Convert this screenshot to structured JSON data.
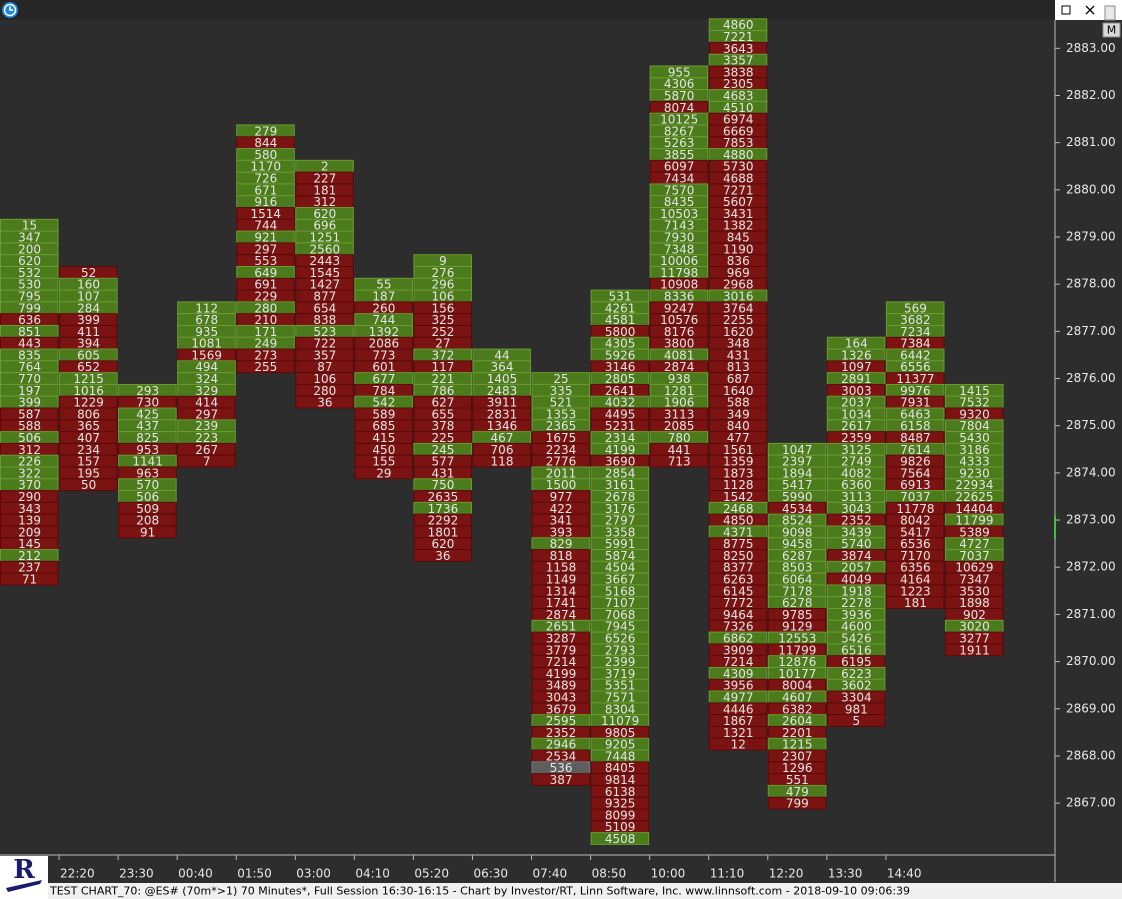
{
  "chart_data": {
    "type": "footprint",
    "title": "TEST CHART_70: @ES# (70m*>1) 70 Minutes*, Full Session 16:30-16:15 - Chart by Investor/RT, Linn Software, Inc. www.linnsoft.com - 2018-09-10 09:06:39",
    "logo": "R",
    "button": "M",
    "palette": {
      "g": "#4c7b1c",
      "r": "#7b1313",
      "n": "#5e5e5e"
    },
    "categories": [
      null,
      "22:20",
      "23:30",
      "00:40",
      "01:50",
      "03:00",
      "04:10",
      "05:20",
      "06:30",
      "07:40",
      "08:50",
      "10:00",
      "11:10",
      "12:20",
      "13:30",
      "14:40",
      null
    ],
    "columns": [
      {
        "top": 2879.25,
        "values": [
          15,
          347,
          200,
          620,
          532,
          530,
          795,
          799,
          636,
          851,
          443,
          835,
          764,
          770,
          197,
          399,
          587,
          588,
          506,
          312,
          226,
          322,
          370,
          290,
          343,
          139,
          209,
          145,
          212,
          237,
          71
        ],
        "colors": "ggggggggrgrgggggrrgrgggrrrrrgrr"
      },
      {
        "top": 2878.25,
        "values": [
          52,
          160,
          107,
          284,
          399,
          411,
          394,
          605,
          652,
          1215,
          1016,
          1229,
          806,
          365,
          407,
          234,
          157,
          195,
          50
        ],
        "colors": "rgggrrrgrggrrrrrrrr"
      },
      {
        "top": 2875.75,
        "values": [
          293,
          730,
          425,
          437,
          825,
          953,
          1141,
          963,
          570,
          506,
          509,
          208,
          91
        ],
        "colors": "grgggrgrggrrr"
      },
      {
        "top": 2877.5,
        "values": [
          112,
          678,
          935,
          1081,
          1569,
          494,
          324,
          329,
          414,
          297,
          239,
          223,
          267,
          7
        ],
        "colors": "ggggrgggrrggrr"
      },
      {
        "top": 2881.25,
        "values": [
          279,
          844,
          580,
          1170,
          726,
          671,
          916,
          1514,
          744,
          921,
          297,
          553,
          649,
          691,
          229,
          280,
          210,
          171,
          249,
          273,
          255
        ],
        "colors": "grgggggrrgrrgrrgrggrr"
      },
      {
        "top": 2880.5,
        "values": [
          2,
          227,
          181,
          312,
          620,
          696,
          1251,
          2560,
          2443,
          1545,
          1427,
          877,
          654,
          838,
          523,
          722,
          357,
          87,
          106,
          280,
          36
        ],
        "colors": "grrrggggrrrrrrgrrrrrr"
      },
      {
        "top": 2878.0,
        "values": [
          55,
          187,
          260,
          744,
          1392,
          2086,
          773,
          601,
          677,
          784,
          542,
          589,
          685,
          415,
          450,
          155,
          29
        ],
        "colors": "ggrggrrrgrgrrrrrr"
      },
      {
        "top": 2878.5,
        "values": [
          9,
          276,
          296,
          106,
          156,
          325,
          252,
          27,
          372,
          117,
          221,
          786,
          627,
          655,
          378,
          225,
          245,
          577,
          431,
          750,
          2635,
          1736,
          2292,
          1801,
          620,
          36
        ],
        "colors": "ggggrrrrgrggrrrrgrrgrgrrrr"
      },
      {
        "top": 2876.5,
        "values": [
          44,
          364,
          1405,
          2483,
          3911,
          2831,
          1346,
          467,
          706,
          118
        ],
        "colors": "ggggrrrgrr"
      },
      {
        "top": 2876.0,
        "values": [
          25,
          335,
          521,
          1353,
          2365,
          1675,
          2234,
          2776,
          2011,
          1500,
          977,
          422,
          341,
          393,
          829,
          818,
          1158,
          1149,
          1314,
          1741,
          2874,
          2651,
          3287,
          3779,
          7214,
          4199,
          3489,
          3043,
          3679,
          2595,
          2352,
          2946,
          2534,
          536,
          387
        ],
        "colors": "gggggrrrggrrrrgrrrrrrgrrrrrrrgrgrnr"
      },
      {
        "top": 2877.75,
        "values": [
          531,
          4261,
          4581,
          5800,
          4305,
          5926,
          3146,
          2805,
          2641,
          4032,
          4495,
          5231,
          2314,
          4199,
          3690,
          2854,
          3161,
          2678,
          3176,
          2797,
          3358,
          5991,
          5874,
          4504,
          3667,
          5168,
          7107,
          7068,
          7945,
          6526,
          2793,
          2399,
          3719,
          5351,
          7571,
          8304,
          11079,
          9805,
          9205,
          7448,
          8405,
          9814,
          6138,
          9325,
          8099,
          5109,
          4508
        ],
        "colors": "gggrggrgrgrrggrggggggggggggggggggggggrggrrrrrrg"
      },
      {
        "top": 2882.5,
        "values": [
          955,
          4306,
          5870,
          8074,
          10125,
          8267,
          5263,
          3855,
          6097,
          7434,
          7570,
          8435,
          10503,
          7143,
          7930,
          7348,
          10006,
          11798,
          10908,
          8336,
          9247,
          10576,
          8176,
          3800,
          4081,
          2874,
          938,
          1281,
          1906,
          3113,
          2085,
          780,
          441,
          713
        ],
        "colors": "gggrggggrrggggggggrgrrrrgrgggrrgrr"
      },
      {
        "top": 2883.5,
        "values": [
          4860,
          7221,
          3643,
          3357,
          3838,
          2305,
          4683,
          4510,
          6974,
          6669,
          7853,
          4880,
          5730,
          4688,
          7271,
          5607,
          3431,
          1382,
          845,
          1190,
          836,
          969,
          2968,
          3016,
          3764,
          2255,
          1620,
          348,
          431,
          813,
          687,
          1640,
          588,
          349,
          840,
          477,
          1561,
          1359,
          1873,
          1128,
          1542,
          2468,
          4850,
          4371,
          8775,
          8250,
          8377,
          6263,
          6145,
          7772,
          9464,
          7326,
          6862,
          3909,
          7214,
          4309,
          3956,
          4977,
          4446,
          1867,
          1321,
          12
        ],
        "colors": "ggrgrrggrrrgrrrrrrrrrrrgrrrrrrrrrrrrrrrrrgrgrrrrrrrrgrrgrgrrrr"
      },
      {
        "top": 2874.5,
        "values": [
          1047,
          2397,
          1894,
          5417,
          5990,
          4534,
          8524,
          9098,
          9458,
          6287,
          8503,
          6064,
          7178,
          6278,
          9785,
          9129,
          12553,
          11799,
          12876,
          10177,
          8004,
          4607,
          6382,
          2604,
          2201,
          1215,
          2307,
          1296,
          551,
          479,
          799
        ],
        "colors": "gggggrggggggggrrgrggrgrgrgrrrgr"
      },
      {
        "top": 2876.75,
        "values": [
          164,
          1326,
          1097,
          2891,
          3003,
          2037,
          1034,
          2617,
          2359,
          3125,
          2749,
          4082,
          6360,
          3113,
          3043,
          2352,
          3439,
          5740,
          3874,
          2057,
          4049,
          1918,
          2278,
          3936,
          4600,
          5426,
          6516,
          6195,
          6223,
          3602,
          3304,
          981,
          5
        ],
        "colors": "ggrgrgggrggggggrggrgrggggggrggrrr"
      },
      {
        "top": 2877.5,
        "values": [
          569,
          3682,
          7234,
          7384,
          6442,
          6556,
          11377,
          9976,
          7931,
          6463,
          6158,
          8487,
          7614,
          9826,
          7564,
          6913,
          7037,
          11778,
          8042,
          5417,
          6536,
          7170,
          6356,
          4164,
          1223,
          181
        ],
        "colors": "gggrggrgrggrgrrrgrrrrrrrrr"
      },
      {
        "top": 2875.75,
        "values": [
          1415,
          7532,
          9320,
          7804,
          5430,
          3186,
          4333,
          9230,
          22934,
          22625,
          14404,
          11799,
          5389,
          4727,
          7037,
          10629,
          7347,
          3530,
          1898,
          902,
          3020,
          3277,
          1911
        ],
        "colors": "ggrgggggggrgrggrrrrrgrr"
      }
    ],
    "row_step": 0.25,
    "ylim": [
      2865.9,
      2883.6
    ],
    "yticks": [
      {
        "value": 2867,
        "label": "2867.00"
      },
      {
        "value": 2868,
        "label": "2868.00"
      },
      {
        "value": 2869,
        "label": "2869.00"
      },
      {
        "value": 2870,
        "label": "2870.00"
      },
      {
        "value": 2871,
        "label": "2871.00"
      },
      {
        "value": 2872,
        "label": "2872.00"
      },
      {
        "value": 2873,
        "label": "2873.00"
      },
      {
        "value": 2874,
        "label": "2874.00"
      },
      {
        "value": 2875,
        "label": "2875.00"
      },
      {
        "value": 2876,
        "label": "2876.00"
      },
      {
        "value": 2877,
        "label": "2877.00"
      },
      {
        "value": 2878,
        "label": "2878.00"
      },
      {
        "value": 2879,
        "label": "2879.00"
      },
      {
        "value": 2880,
        "label": "2880.00"
      },
      {
        "value": 2881,
        "label": "2881.00"
      },
      {
        "value": 2882,
        "label": "2882.00"
      },
      {
        "value": 2883,
        "label": "2883.00"
      }
    ]
  }
}
